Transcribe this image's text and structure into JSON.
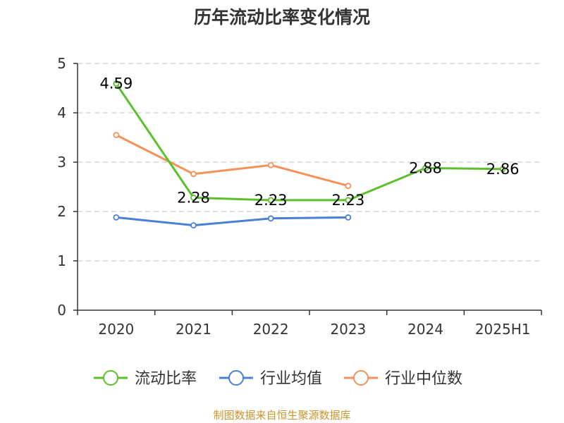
{
  "chart_data": {
    "type": "line",
    "title": "历年流动比率变化情况",
    "categories": [
      "2020",
      "2021",
      "2022",
      "2023",
      "2024",
      "2025H1"
    ],
    "ylim": [
      0,
      5
    ],
    "yticks": [
      "0",
      "1",
      "2",
      "3",
      "4",
      "5"
    ],
    "grid": "horizontal-dashed",
    "legend_position": "bottom",
    "series": [
      {
        "name": "流动比率",
        "color": "#5cc02a",
        "values": [
          4.59,
          2.28,
          2.23,
          2.23,
          2.88,
          2.86
        ],
        "labels": [
          "4.59",
          "2.28",
          "2.23",
          "2.23",
          "2.88",
          "2.86"
        ]
      },
      {
        "name": "行业均值",
        "color": "#4a7fd6",
        "values": [
          1.88,
          1.72,
          1.86,
          1.88,
          null,
          null
        ]
      },
      {
        "name": "行业中位数",
        "color": "#f59158",
        "values": [
          3.55,
          2.76,
          2.94,
          2.52,
          null,
          null
        ]
      }
    ]
  },
  "footer": {
    "source": "制图数据来自恒生聚源数据库"
  }
}
